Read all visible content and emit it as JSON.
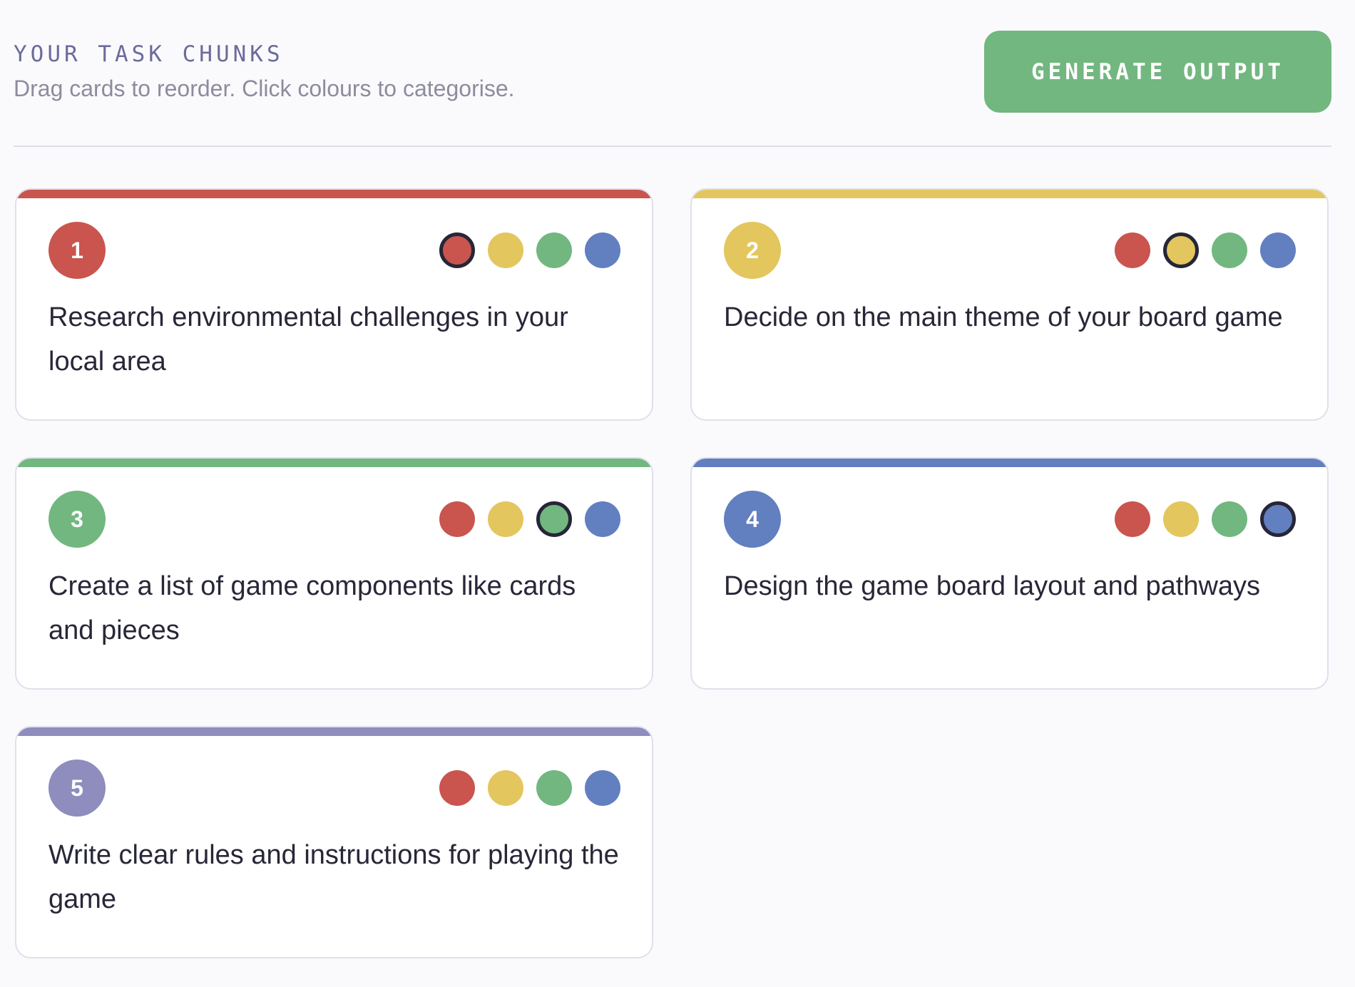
{
  "header": {
    "title": "YOUR TASK CHUNKS",
    "subtitle": "Drag cards to reorder. Click colours to categorise.",
    "generate_label": "GENERATE OUTPUT"
  },
  "colors": {
    "red": "#c9554e",
    "yellow": "#e3c65e",
    "green": "#72b780",
    "blue": "#627fc0",
    "purple": "#8e8dbd",
    "button": "#72b780"
  },
  "palette": [
    "red",
    "yellow",
    "green",
    "blue"
  ],
  "cards": [
    {
      "number": "1",
      "text": "Research environmental challenges in your local area",
      "category": "red"
    },
    {
      "number": "2",
      "text": "Decide on the main theme of your board game",
      "category": "yellow"
    },
    {
      "number": "3",
      "text": "Create a list of game components like cards and pieces",
      "category": "green"
    },
    {
      "number": "4",
      "text": "Design the game board layout and pathways",
      "category": "blue"
    },
    {
      "number": "5",
      "text": "Write clear rules and instructions for playing the game",
      "category": "purple"
    }
  ]
}
